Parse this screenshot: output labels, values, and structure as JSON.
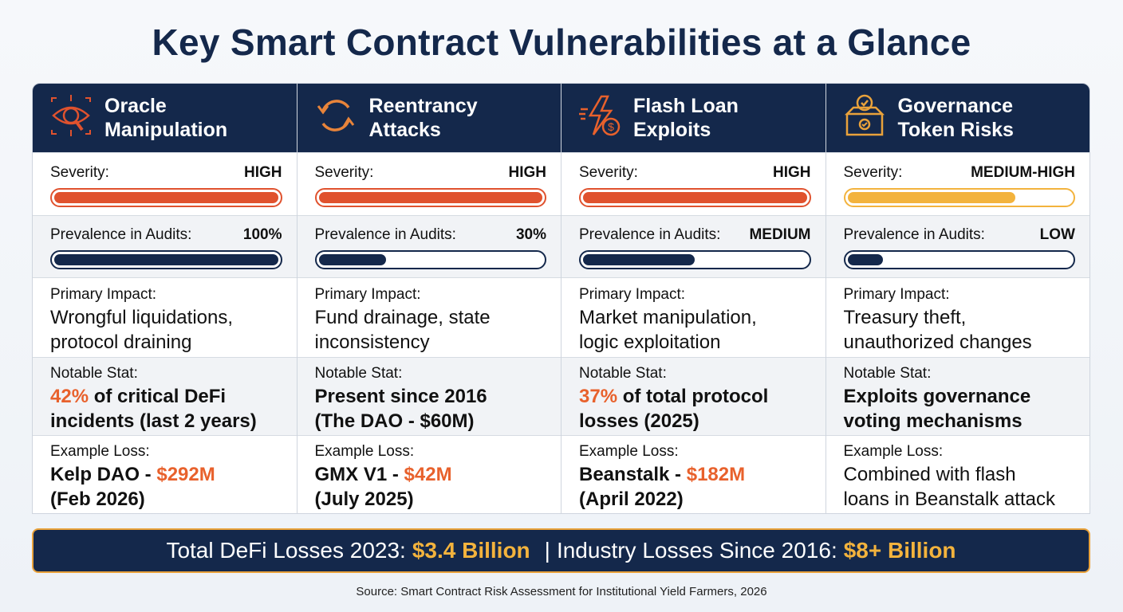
{
  "title": "Key Smart Contract Vulnerabilities at a Glance",
  "colors": {
    "navy": "#14284b",
    "orange": "#e0522e",
    "amber": "#f3b33d",
    "accent": "#e8612c"
  },
  "columns": [
    {
      "icon": "eye-magnifier-icon",
      "icon_color": "#e0522e",
      "title_lines": [
        "Oracle",
        "Manipulation"
      ],
      "severity_label": "Severity:",
      "severity": "HIGH",
      "severity_fill": 1.0,
      "severity_color": "#e0522e",
      "prevalence_label": "Prevalence in Audits:",
      "prevalence": "100%",
      "prevalence_fill": 1.0,
      "impact_label": "Primary Impact:",
      "impact_lines": [
        "Wrongful liquidations,",
        "protocol draining"
      ],
      "stat_label": "Notable Stat:",
      "stat_lines": [
        [
          {
            "t": "42%",
            "a": true
          },
          {
            "t": " of critical DeFi"
          }
        ],
        [
          {
            "t": "incidents (last 2 years)"
          }
        ]
      ],
      "loss_label": "Example Loss:",
      "loss_lines": [
        [
          {
            "t": "Kelp DAO - "
          },
          {
            "t": "$292M",
            "a": true
          }
        ],
        [
          {
            "t": "(Feb 2026)"
          }
        ]
      ]
    },
    {
      "icon": "cycle-arrows-icon",
      "icon_color": "#e8843a",
      "title_lines": [
        "Reentrancy",
        "Attacks"
      ],
      "severity_label": "Severity:",
      "severity": "HIGH",
      "severity_fill": 1.0,
      "severity_color": "#e0522e",
      "prevalence_label": "Prevalence in Audits:",
      "prevalence": "30%",
      "prevalence_fill": 0.3,
      "impact_label": "Primary Impact:",
      "impact_lines": [
        "Fund drainage, state",
        "inconsistency"
      ],
      "stat_label": "Notable Stat:",
      "stat_lines": [
        [
          {
            "t": "Present since 2016"
          }
        ],
        [
          {
            "t": "(The DAO - $60M)"
          }
        ]
      ],
      "loss_label": "Example Loss:",
      "loss_lines": [
        [
          {
            "t": "GMX V1 - "
          },
          {
            "t": "$42M",
            "a": true
          }
        ],
        [
          {
            "t": "(July 2025)"
          }
        ]
      ]
    },
    {
      "icon": "lightning-dollar-icon",
      "icon_color": "#e8612c",
      "title_lines": [
        "Flash Loan",
        "Exploits"
      ],
      "severity_label": "Severity:",
      "severity": "HIGH",
      "severity_fill": 1.0,
      "severity_color": "#e0522e",
      "prevalence_label": "Prevalence in Audits:",
      "prevalence": "MEDIUM",
      "prevalence_fill": 0.5,
      "impact_label": "Primary Impact:",
      "impact_lines": [
        "Market manipulation,",
        "logic exploitation"
      ],
      "stat_label": "Notable Stat:",
      "stat_lines": [
        [
          {
            "t": "37%",
            "a": true
          },
          {
            "t": " of total protocol"
          }
        ],
        [
          {
            "t": "losses (2025)"
          }
        ]
      ],
      "loss_label": "Example Loss:",
      "loss_lines": [
        [
          {
            "t": "Beanstalk - "
          },
          {
            "t": "$182M",
            "a": true
          }
        ],
        [
          {
            "t": "(April 2022)"
          }
        ]
      ]
    },
    {
      "icon": "ballot-box-icon",
      "icon_color": "#e9a23b",
      "title_lines": [
        "Governance",
        "Token Risks"
      ],
      "severity_label": "Severity:",
      "severity": "MEDIUM-HIGH",
      "severity_fill": 0.75,
      "severity_color": "#f3b33d",
      "prevalence_label": "Prevalence in Audits:",
      "prevalence": "LOW",
      "prevalence_fill": 0.16,
      "impact_label": "Primary Impact:",
      "impact_lines": [
        "Treasury theft,",
        "unauthorized changes"
      ],
      "stat_label": "Notable Stat:",
      "stat_lines": [
        [
          {
            "t": "Exploits governance"
          }
        ],
        [
          {
            "t": "voting mechanisms"
          }
        ]
      ],
      "loss_label": "Example Loss:",
      "loss_lines": [
        [
          {
            "t": "Combined with flash",
            "n": true
          }
        ],
        [
          {
            "t": "loans in Beanstalk attack",
            "n": true
          }
        ]
      ]
    }
  ],
  "banner": {
    "part1": "Total DeFi Losses 2023:",
    "value1": "$3.4 Billion",
    "sep": "|",
    "part2": "Industry Losses Since 2016:",
    "value2": "$8+ Billion"
  },
  "source": "Source: Smart Contract Risk Assessment for Institutional Yield Farmers, 2026"
}
